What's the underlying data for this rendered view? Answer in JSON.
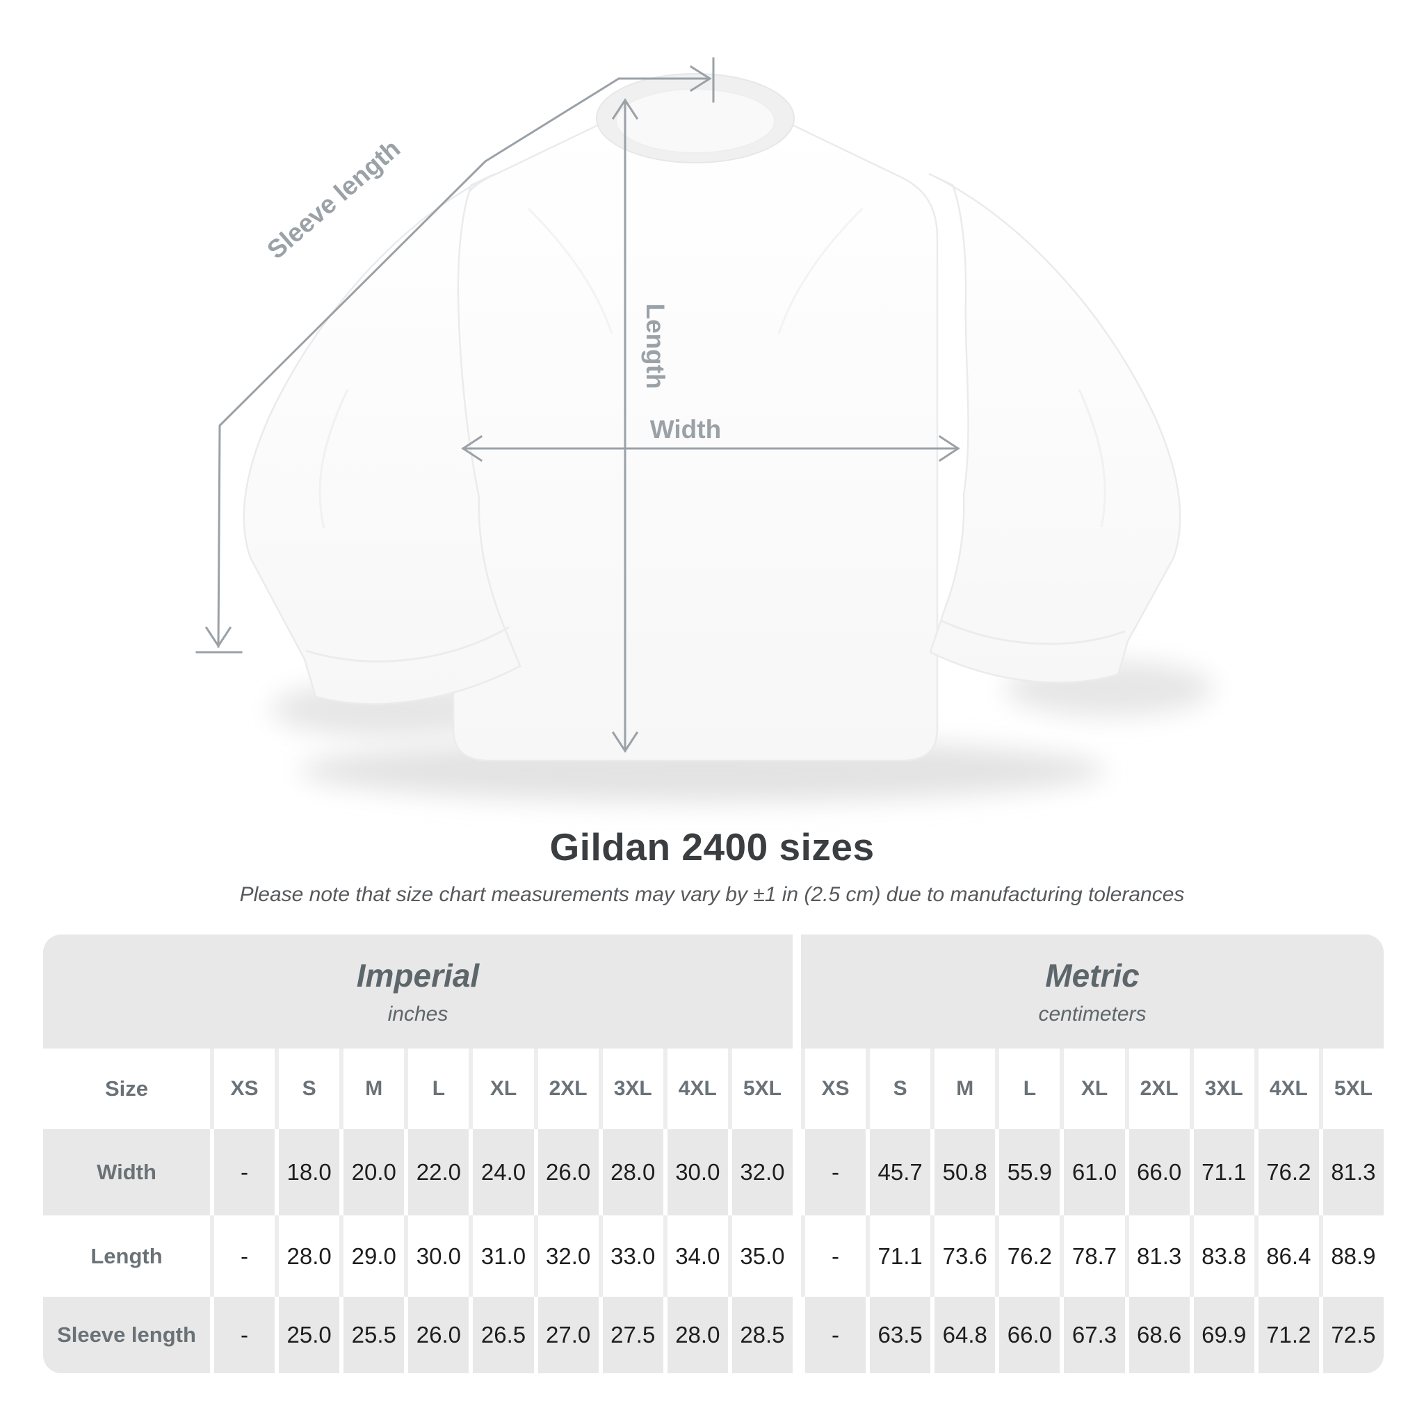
{
  "shirt_diagram": {
    "labels": {
      "sleeve_length": "Sleeve length",
      "length": "Length",
      "width": "Width"
    }
  },
  "heading": {
    "title": "Gildan 2400 sizes",
    "subtitle": "Please note that size chart measurements may vary by ±1 in (2.5 cm) due to manufacturing tolerances"
  },
  "size_table": {
    "size_header_label": "Size",
    "sections": [
      {
        "label": "Imperial",
        "sublabel": "inches"
      },
      {
        "label": "Metric",
        "sublabel": "centimeters"
      }
    ],
    "size_columns": [
      "XS",
      "S",
      "M",
      "L",
      "XL",
      "2XL",
      "3XL",
      "4XL",
      "5XL"
    ],
    "rows": [
      {
        "label": "Width",
        "imperial": [
          "-",
          "18.0",
          "20.0",
          "22.0",
          "24.0",
          "26.0",
          "28.0",
          "30.0",
          "32.0"
        ],
        "metric": [
          "-",
          "45.7",
          "50.8",
          "55.9",
          "61.0",
          "66.0",
          "71.1",
          "76.2",
          "81.3"
        ]
      },
      {
        "label": "Length",
        "imperial": [
          "-",
          "28.0",
          "29.0",
          "30.0",
          "31.0",
          "32.0",
          "33.0",
          "34.0",
          "35.0"
        ],
        "metric": [
          "-",
          "71.1",
          "73.6",
          "76.2",
          "78.7",
          "81.3",
          "83.8",
          "86.4",
          "88.9"
        ]
      },
      {
        "label": "Sleeve length",
        "imperial": [
          "-",
          "25.0",
          "25.5",
          "26.0",
          "26.5",
          "27.0",
          "27.5",
          "28.0",
          "28.5"
        ],
        "metric": [
          "-",
          "63.5",
          "64.8",
          "66.0",
          "67.3",
          "68.6",
          "69.9",
          "71.2",
          "72.5"
        ]
      }
    ]
  },
  "chart_data": {
    "type": "table",
    "title": "Gildan 2400 sizes",
    "note": "Please note that size chart measurements may vary by ±1 in (2.5 cm) due to manufacturing tolerances",
    "sections": [
      {
        "name": "Imperial",
        "units": "inches",
        "columns": [
          "XS",
          "S",
          "M",
          "L",
          "XL",
          "2XL",
          "3XL",
          "4XL",
          "5XL"
        ],
        "rows": [
          {
            "measurement": "Width",
            "values": [
              null,
              18.0,
              20.0,
              22.0,
              24.0,
              26.0,
              28.0,
              30.0,
              32.0
            ]
          },
          {
            "measurement": "Length",
            "values": [
              null,
              28.0,
              29.0,
              30.0,
              31.0,
              32.0,
              33.0,
              34.0,
              35.0
            ]
          },
          {
            "measurement": "Sleeve length",
            "values": [
              null,
              25.0,
              25.5,
              26.0,
              26.5,
              27.0,
              27.5,
              28.0,
              28.5
            ]
          }
        ]
      },
      {
        "name": "Metric",
        "units": "centimeters",
        "columns": [
          "XS",
          "S",
          "M",
          "L",
          "XL",
          "2XL",
          "3XL",
          "4XL",
          "5XL"
        ],
        "rows": [
          {
            "measurement": "Width",
            "values": [
              null,
              45.7,
              50.8,
              55.9,
              61.0,
              66.0,
              71.1,
              76.2,
              81.3
            ]
          },
          {
            "measurement": "Length",
            "values": [
              null,
              71.1,
              73.6,
              76.2,
              78.7,
              81.3,
              83.8,
              86.4,
              88.9
            ]
          },
          {
            "measurement": "Sleeve length",
            "values": [
              null,
              63.5,
              64.8,
              66.0,
              67.3,
              68.6,
              69.9,
              71.2,
              72.5
            ]
          }
        ]
      }
    ]
  },
  "colors": {
    "row_gray": "#e8e8e8",
    "separator_light": "#ededed",
    "header_text": "#6a7277",
    "number_text": "#1e1e1e",
    "annotation": "#9aa1a7",
    "title_text": "#3a3e41",
    "subtitle_text": "#56595c"
  }
}
